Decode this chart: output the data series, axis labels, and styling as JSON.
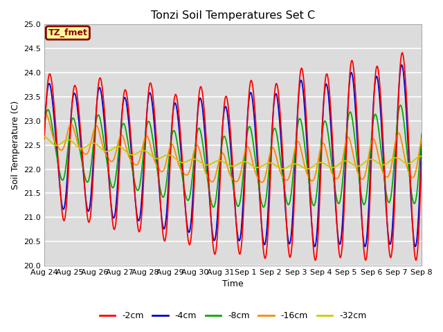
{
  "title": "Tonzi Soil Temperatures Set C",
  "xlabel": "Time",
  "ylabel": "Soil Temperature (C)",
  "ylim": [
    20.0,
    25.0
  ],
  "yticks": [
    20.0,
    20.5,
    21.0,
    21.5,
    22.0,
    22.5,
    23.0,
    23.5,
    24.0,
    24.5,
    25.0
  ],
  "bg_color": "#dcdcdc",
  "fig_color": "#ffffff",
  "annotation_text": "TZ_fmet",
  "annotation_facecolor": "#ffff99",
  "annotation_edgecolor": "#8b0000",
  "legend_labels": [
    "-2cm",
    "-4cm",
    "-8cm",
    "-16cm",
    "-32cm"
  ],
  "line_colors": [
    "#ff0000",
    "#0000cc",
    "#00aa00",
    "#ff8800",
    "#cccc00"
  ],
  "line_widths": [
    1.5,
    1.5,
    1.5,
    1.5,
    1.5
  ],
  "xtick_labels": [
    "Aug 24",
    "Aug 25",
    "Aug 26",
    "Aug 27",
    "Aug 28",
    "Aug 29",
    "Aug 30",
    "Aug 31",
    "Sep 1",
    "Sep 2",
    "Sep 3",
    "Sep 4",
    "Sep 5",
    "Sep 6",
    "Sep 7",
    "Sep 8"
  ],
  "days": 15
}
